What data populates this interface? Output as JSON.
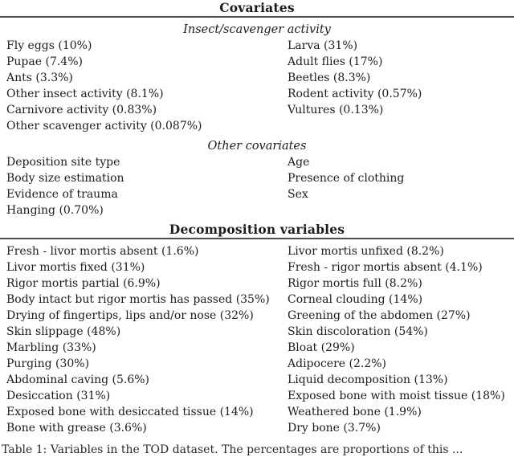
{
  "table": {
    "covariates": {
      "title": "Covariates",
      "sections": [
        {
          "heading": "Insect/scavenger activity",
          "rows": [
            {
              "left": "Fly eggs (10%)",
              "right": "Larva (31%)"
            },
            {
              "left": "Pupae (7.4%)",
              "right": "Adult flies (17%)"
            },
            {
              "left": "Ants (3.3%)",
              "right": "Beetles (8.3%)"
            },
            {
              "left": "Other insect activity (8.1%)",
              "right": "Rodent activity (0.57%)"
            },
            {
              "left": "Carnivore activity (0.83%)",
              "right": "Vultures (0.13%)"
            },
            {
              "left": "Other scavenger activity (0.087%)",
              "right": ""
            }
          ]
        },
        {
          "heading": "Other covariates",
          "rows": [
            {
              "left": "Deposition site type",
              "right": "Age"
            },
            {
              "left": "Body size estimation",
              "right": "Presence of clothing"
            },
            {
              "left": "Evidence of trauma",
              "right": "Sex"
            },
            {
              "left": "Hanging (0.70%)",
              "right": ""
            }
          ]
        }
      ]
    },
    "decomposition": {
      "title": "Decomposition variables",
      "rows": [
        {
          "left": "Fresh - livor mortis absent (1.6%)",
          "right": "Livor mortis unfixed (8.2%)"
        },
        {
          "left": "Livor mortis fixed (31%)",
          "right": "Fresh - rigor mortis absent (4.1%)"
        },
        {
          "left": "Rigor mortis partial (6.9%)",
          "right": "Rigor mortis full (8.2%)"
        },
        {
          "left": "Body intact but rigor mortis has passed (35%)",
          "right": "Corneal clouding (14%)"
        },
        {
          "left": "Drying of fingertips, lips and/or nose (32%)",
          "right": "Greening of the abdomen (27%)"
        },
        {
          "left": "Skin slippage (48%)",
          "right": "Skin discoloration (54%)"
        },
        {
          "left": "Marbling (33%)",
          "right": "Bloat (29%)"
        },
        {
          "left": "Purging (30%)",
          "right": "Adipocere (2.2%)"
        },
        {
          "left": "Abdominal caving (5.6%)",
          "right": "Liquid decomposition (13%)"
        },
        {
          "left": "Desiccation (31%)",
          "right": "Exposed bone with moist tissue (18%)"
        },
        {
          "left": "Exposed bone with desiccated tissue (14%)",
          "right": "Weathered bone (1.9%)"
        },
        {
          "left": "Bone with grease (3.6%)",
          "right": "Dry bone (3.7%)"
        }
      ]
    },
    "caption": "Table 1: Variables in the TOD dataset. The percentages are proportions of this ..."
  },
  "colors": {
    "text": "#1c1c1c",
    "rule": "#4d4d4d",
    "background": "#ffffff"
  }
}
